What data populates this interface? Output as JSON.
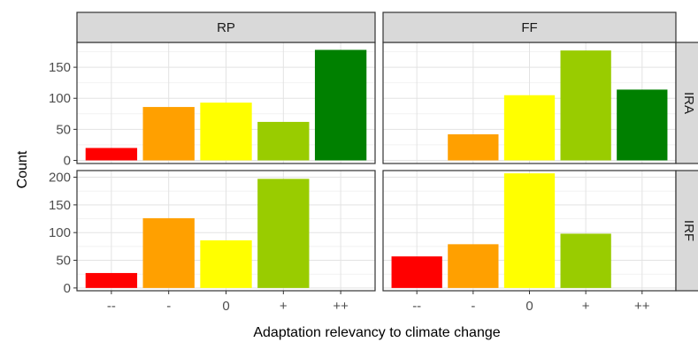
{
  "chart_data": {
    "type": "bar",
    "facet_columns": [
      "RP",
      "FF"
    ],
    "facet_rows": [
      "IRA",
      "IRF"
    ],
    "categories": [
      "--",
      "-",
      "0",
      "+",
      "++"
    ],
    "category_colors": [
      "#ff0000",
      "#ffa000",
      "#ffff00",
      "#99cc00",
      "#008000"
    ],
    "xlabel": "Adaptation relevancy to climate change",
    "ylabel": "Count",
    "panels": [
      {
        "col": "RP",
        "row": "IRA",
        "values": [
          20,
          86,
          93,
          62,
          178
        ]
      },
      {
        "col": "FF",
        "row": "IRA",
        "values": [
          0,
          42,
          105,
          177,
          114
        ]
      },
      {
        "col": "RP",
        "row": "IRF",
        "values": [
          27,
          126,
          86,
          197,
          0
        ]
      },
      {
        "col": "FF",
        "row": "IRF",
        "values": [
          57,
          79,
          207,
          98,
          0
        ]
      }
    ],
    "rows_axis": [
      {
        "row": "IRA",
        "ylim": [
          -5,
          190
        ],
        "yticks": [
          0,
          50,
          100,
          150
        ]
      },
      {
        "row": "IRF",
        "ylim": [
          -5,
          212
        ],
        "yticks": [
          0,
          50,
          100,
          150,
          200
        ]
      }
    ],
    "grid": true,
    "legend": "none"
  }
}
